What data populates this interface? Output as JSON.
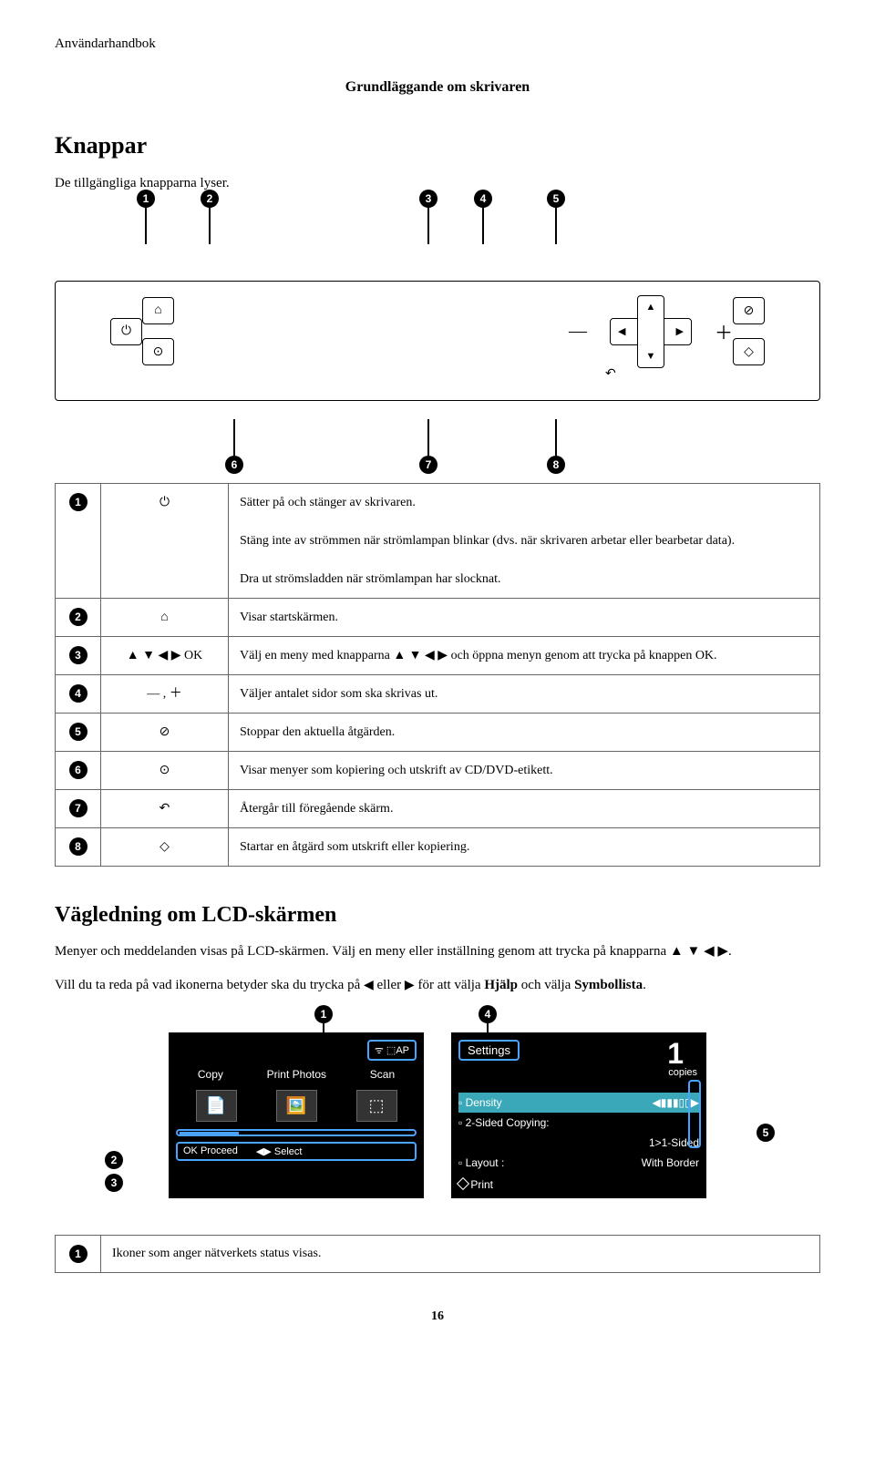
{
  "header": {
    "doctype": "Användarhandbok",
    "section": "Grundläggande om skrivaren"
  },
  "h1": "Knappar",
  "p1": "De tillgängliga knapparna lyser.",
  "panel": {
    "top_markers": [
      "1",
      "2",
      "3",
      "4",
      "5"
    ],
    "bottom_markers": [
      "6",
      "7",
      "8"
    ],
    "ok": "OK"
  },
  "button_table": [
    {
      "n": "1",
      "icon": "⏻",
      "text": "Sätter på och stänger av skrivaren.\nStäng inte av strömmen när strömlampan blinkar (dvs. när skrivaren arbetar eller bearbetar data).\nDra ut strömsladden när strömlampan har slocknat."
    },
    {
      "n": "2",
      "icon": "⌂",
      "text": "Visar startskärmen."
    },
    {
      "n": "3",
      "icon": "▲ ▼ ◀ ▶ OK",
      "text": "Välj en meny med knapparna ▲ ▼ ◀ ▶ och öppna menyn genom att trycka på knappen OK."
    },
    {
      "n": "4",
      "icon": "— , ＋",
      "text": "Väljer antalet sidor som ska skrivas ut."
    },
    {
      "n": "5",
      "icon": "⊘",
      "text": "Stoppar den aktuella åtgärden."
    },
    {
      "n": "6",
      "icon": "⊙",
      "text": "Visar menyer som kopiering och utskrift av CD/DVD-etikett."
    },
    {
      "n": "7",
      "icon": "↶",
      "text": "Återgår till föregående skärm."
    },
    {
      "n": "8",
      "icon": "◇",
      "text": "Startar en åtgärd som utskrift eller kopiering."
    }
  ],
  "h2": "Vägledning om LCD-skärmen",
  "p2": "Menyer och meddelanden visas på LCD-skärmen. Välj en meny eller inställning genom att trycka på knapparna ▲ ▼ ◀ ▶.",
  "p3_pre": "Vill du ta reda på vad ikonerna betyder ska du trycka på ",
  "p3_mid": " eller ",
  "p3_post": " för att välja ",
  "p3_b1": "Hjälp",
  "p3_and": " och välja ",
  "p3_b2": "Symbollista",
  "p3_end": ".",
  "lcd_left": {
    "wifi": "ᯤ ⬚AP",
    "menu": [
      "Copy",
      "Print Photos",
      "Scan"
    ],
    "bottom": [
      "OK Proceed",
      "◀▶ Select"
    ]
  },
  "lcd_right": {
    "header": "Settings",
    "copies_n": "1",
    "copies": "copies",
    "rows": [
      {
        "k": "Density",
        "v": "◀▮▮▮▯▯▶",
        "hl": true
      },
      {
        "k": "2-Sided Copying:",
        "v": ""
      },
      {
        "k": "",
        "v": "1>1-Sided"
      },
      {
        "k": "Layout  :",
        "v": "With Border"
      }
    ],
    "print": "Print"
  },
  "lcd_markers": {
    "1": "1",
    "2": "2",
    "3": "3",
    "4": "4",
    "5": "5"
  },
  "icon_table": [
    {
      "n": "1",
      "text": "Ikoner som anger nätverkets status visas."
    }
  ],
  "pagenum": "16"
}
